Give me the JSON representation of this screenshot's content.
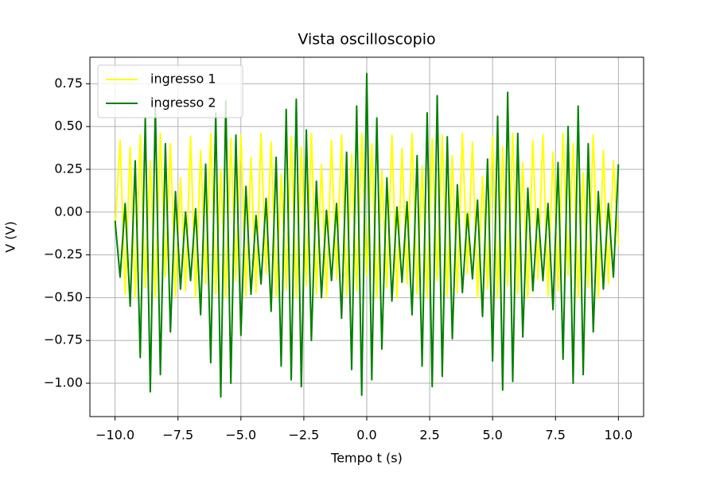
{
  "chart_data": {
    "type": "line",
    "title": "Vista oscilloscopio",
    "xlabel": "Tempo t (s)",
    "ylabel": "V (V)",
    "x": [
      -10,
      -9.8,
      -9.6,
      -9.4,
      -9.2,
      -9,
      -8.8,
      -8.6,
      -8.4,
      -8.2,
      -8,
      -7.8,
      -7.6,
      -7.4,
      -7.2,
      -7,
      -6.8,
      -6.6,
      -6.4,
      -6.2,
      -6,
      -5.8,
      -5.6,
      -5.4,
      -5.2,
      -5,
      -4.8,
      -4.6,
      -4.4,
      -4.2,
      -4,
      -3.8,
      -3.6,
      -3.4,
      -3.2,
      -3,
      -2.8,
      -2.6,
      -2.4,
      -2.2,
      -2,
      -1.8,
      -1.6,
      -1.4,
      -1.2,
      -1,
      -0.8,
      -0.6,
      -0.4,
      -0.2,
      0,
      0.2,
      0.4,
      0.6,
      0.8,
      1,
      1.2,
      1.4,
      1.6,
      1.8,
      2,
      2.2,
      2.4,
      2.6,
      2.8,
      3,
      3.2,
      3.4,
      3.6,
      3.8,
      4,
      4.2,
      4.4,
      4.6,
      4.8,
      5,
      5.2,
      5.4,
      5.6,
      5.8,
      6,
      6.2,
      6.4,
      6.6,
      6.8,
      7,
      7.2,
      7.4,
      7.6,
      7.8,
      8,
      8.2,
      8.4,
      8.6,
      8.8,
      9,
      9.2,
      9.4,
      9.6,
      9.8,
      10
    ],
    "series": [
      {
        "name": "ingresso 1",
        "color": "#ffff00",
        "values": [
          -0.1,
          0.42,
          -0.48,
          0.38,
          -0.5,
          0.45,
          -0.44,
          0.3,
          -0.5,
          0.46,
          -0.38,
          0.4,
          -0.49,
          0.2,
          -0.46,
          0.44,
          -0.5,
          0.36,
          -0.42,
          0.46,
          -0.48,
          0.25,
          -0.5,
          0.43,
          -0.4,
          0.45,
          -0.49,
          0.32,
          -0.47,
          0.46,
          -0.36,
          0.41,
          -0.5,
          0.22,
          -0.45,
          0.44,
          -0.5,
          0.38,
          -0.43,
          0.46,
          -0.48,
          0.28,
          -0.5,
          0.42,
          -0.39,
          0.45,
          -0.49,
          0.34,
          -0.46,
          0.46,
          -0.37,
          0.4,
          -0.5,
          0.24,
          -0.44,
          0.45,
          -0.5,
          0.37,
          -0.42,
          0.46,
          -0.48,
          0.27,
          -0.5,
          0.43,
          -0.4,
          0.45,
          -0.49,
          0.33,
          -0.47,
          0.46,
          -0.36,
          0.41,
          -0.5,
          0.21,
          -0.45,
          0.44,
          -0.5,
          0.38,
          -0.43,
          0.46,
          -0.48,
          0.29,
          -0.5,
          0.42,
          -0.39,
          0.45,
          -0.49,
          0.35,
          -0.46,
          0.46,
          -0.37,
          0.4,
          -0.5,
          0.23,
          -0.44,
          0.45,
          -0.5,
          0.36,
          -0.42,
          0.3,
          -0.2
        ]
      },
      {
        "name": "ingresso 2",
        "color": "#008000",
        "values": [
          -0.05,
          -0.38,
          0.05,
          -0.55,
          0.3,
          -0.85,
          0.55,
          -1.05,
          0.62,
          -0.95,
          0.4,
          -0.7,
          0.12,
          -0.45,
          0.0,
          -0.4,
          0.02,
          -0.6,
          0.28,
          -0.88,
          0.58,
          -1.08,
          0.65,
          -1.0,
          0.45,
          -0.72,
          0.15,
          -0.48,
          -0.02,
          -0.42,
          0.08,
          -0.58,
          0.32,
          -0.9,
          0.6,
          -0.98,
          0.66,
          -1.02,
          0.48,
          -0.75,
          0.18,
          -0.5,
          0.01,
          -0.4,
          0.05,
          -0.62,
          0.35,
          -0.92,
          0.62,
          -1.07,
          0.81,
          -0.98,
          0.55,
          -0.8,
          0.2,
          -0.52,
          0.03,
          -0.41,
          0.06,
          -0.6,
          0.33,
          -0.9,
          0.58,
          -1.02,
          0.68,
          -0.96,
          0.44,
          -0.74,
          0.16,
          -0.47,
          -0.01,
          -0.39,
          0.07,
          -0.61,
          0.31,
          -0.87,
          0.56,
          -1.04,
          0.7,
          -0.99,
          0.46,
          -0.73,
          0.14,
          -0.46,
          0.02,
          -0.4,
          0.05,
          -0.57,
          0.29,
          -0.86,
          0.5,
          -1.0,
          0.62,
          -0.95,
          0.4,
          -0.7,
          0.12,
          -0.45,
          0.05,
          -0.38,
          0.28
        ]
      }
    ],
    "xlim": [
      -11,
      11
    ],
    "ylim": [
      -1.195,
      0.905
    ],
    "xticks": [
      {
        "value": -10,
        "label": "−10.0"
      },
      {
        "value": -7.5,
        "label": "−7.5"
      },
      {
        "value": -5,
        "label": "−5.0"
      },
      {
        "value": -2.5,
        "label": "−2.5"
      },
      {
        "value": 0,
        "label": "0.0"
      },
      {
        "value": 2.5,
        "label": "2.5"
      },
      {
        "value": 5,
        "label": "5.0"
      },
      {
        "value": 7.5,
        "label": "7.5"
      },
      {
        "value": 10,
        "label": "10.0"
      }
    ],
    "yticks": [
      {
        "value": -1,
        "label": "−1.00"
      },
      {
        "value": -0.75,
        "label": "−0.75"
      },
      {
        "value": -0.5,
        "label": "−0.50"
      },
      {
        "value": -0.25,
        "label": "−0.25"
      },
      {
        "value": 0,
        "label": "0.00"
      },
      {
        "value": 0.25,
        "label": "0.25"
      },
      {
        "value": 0.5,
        "label": "0.50"
      },
      {
        "value": 0.75,
        "label": "0.75"
      }
    ],
    "grid": true,
    "legend": "upper left"
  }
}
